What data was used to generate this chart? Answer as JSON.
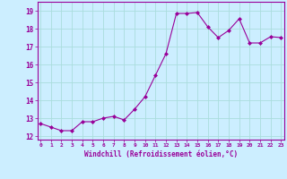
{
  "x": [
    0,
    1,
    2,
    3,
    4,
    5,
    6,
    7,
    8,
    9,
    10,
    11,
    12,
    13,
    14,
    15,
    16,
    17,
    18,
    19,
    20,
    21,
    22,
    23
  ],
  "y": [
    12.7,
    12.5,
    12.3,
    12.3,
    12.8,
    12.8,
    13.0,
    13.1,
    12.9,
    13.5,
    14.2,
    15.4,
    16.6,
    18.85,
    18.85,
    18.9,
    18.1,
    17.5,
    17.9,
    18.55,
    17.2,
    17.2,
    17.55,
    17.5
  ],
  "line_color": "#990099",
  "marker": "D",
  "marker_size": 2.0,
  "bg_color": "#cceeff",
  "grid_color": "#aadddd",
  "xlabel": "Windchill (Refroidissement éolien,°C)",
  "xlabel_color": "#990099",
  "tick_color": "#990099",
  "ylim": [
    11.8,
    19.5
  ],
  "yticks": [
    12,
    13,
    14,
    15,
    16,
    17,
    18,
    19
  ],
  "xticks": [
    0,
    1,
    2,
    3,
    4,
    5,
    6,
    7,
    8,
    9,
    10,
    11,
    12,
    13,
    14,
    15,
    16,
    17,
    18,
    19,
    20,
    21,
    22,
    23
  ],
  "xlim": [
    -0.3,
    23.3
  ]
}
